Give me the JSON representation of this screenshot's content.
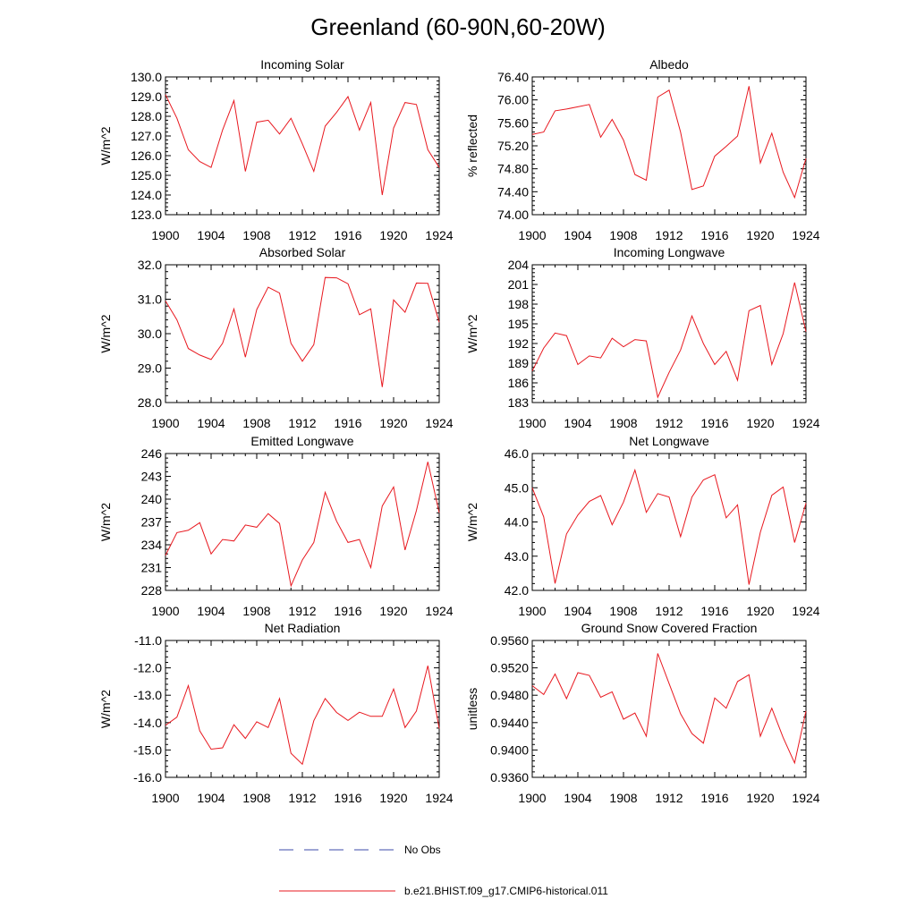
{
  "title": "Greenland (60-90N,60-20W)",
  "legend": [
    {
      "label": "No Obs",
      "color": "#3b4ba8",
      "dashed": true
    },
    {
      "label": "b.e21.BHIST.f09_g17.CMIP6-historical.011",
      "color": "#e8181f",
      "dashed": false
    }
  ],
  "chart_data": [
    {
      "type": "line",
      "title": "Incoming Solar",
      "ylabel": "W/m^2",
      "xlim": [
        1900,
        1924
      ],
      "ylim": [
        123.0,
        130.0
      ],
      "yticks": [
        123.0,
        124.0,
        125.0,
        126.0,
        127.0,
        128.0,
        129.0,
        130.0
      ],
      "ytick_labels": [
        "123.0",
        "124.0",
        "125.0",
        "126.0",
        "127.0",
        "128.0",
        "129.0",
        "130.0"
      ],
      "xticks": [
        1900,
        1904,
        1908,
        1912,
        1916,
        1920,
        1924
      ],
      "series": [
        {
          "color": "#e8181f",
          "x": [
            1900,
            1901,
            1902,
            1903,
            1904,
            1905,
            1906,
            1907,
            1908,
            1909,
            1910,
            1911,
            1912,
            1913,
            1914,
            1915,
            1916,
            1917,
            1918,
            1919,
            1920,
            1921,
            1922,
            1923,
            1924
          ],
          "values": [
            129.1,
            127.9,
            126.3,
            125.7,
            125.4,
            127.3,
            128.8,
            125.2,
            127.7,
            127.8,
            127.1,
            127.9,
            126.6,
            125.2,
            127.5,
            128.2,
            129.0,
            127.3,
            128.7,
            124.0,
            127.4,
            128.7,
            128.6,
            126.3,
            125.4
          ]
        }
      ]
    },
    {
      "type": "line",
      "title": "Albedo",
      "ylabel": "% reflected",
      "xlim": [
        1900,
        1924
      ],
      "ylim": [
        74.0,
        76.4
      ],
      "yticks": [
        74.0,
        74.4,
        74.8,
        75.2,
        75.6,
        76.0,
        76.4
      ],
      "ytick_labels": [
        "74.00",
        "74.40",
        "74.80",
        "75.20",
        "75.60",
        "76.00",
        "76.40"
      ],
      "xticks": [
        1900,
        1904,
        1908,
        1912,
        1916,
        1920,
        1924
      ],
      "series": [
        {
          "color": "#e8181f",
          "x": [
            1900,
            1901,
            1902,
            1903,
            1904,
            1905,
            1906,
            1907,
            1908,
            1909,
            1910,
            1911,
            1912,
            1913,
            1914,
            1915,
            1916,
            1917,
            1918,
            1919,
            1920,
            1921,
            1922,
            1923,
            1924
          ],
          "values": [
            75.4,
            75.44,
            75.81,
            75.84,
            75.88,
            75.92,
            75.35,
            75.66,
            75.3,
            74.7,
            74.6,
            76.05,
            76.17,
            75.44,
            74.44,
            74.5,
            75.02,
            75.19,
            75.37,
            76.24,
            74.9,
            75.42,
            74.74,
            74.3,
            74.98
          ]
        }
      ]
    },
    {
      "type": "line",
      "title": "Absorbed Solar",
      "ylabel": "W/m^2",
      "xlim": [
        1900,
        1924
      ],
      "ylim": [
        28.0,
        32.0
      ],
      "yticks": [
        28.0,
        29.0,
        30.0,
        31.0,
        32.0
      ],
      "ytick_labels": [
        "28.0",
        "29.0",
        "30.0",
        "31.0",
        "32.0"
      ],
      "xticks": [
        1900,
        1904,
        1908,
        1912,
        1916,
        1920,
        1924
      ],
      "series": [
        {
          "color": "#e8181f",
          "x": [
            1900,
            1901,
            1902,
            1903,
            1904,
            1905,
            1906,
            1907,
            1908,
            1909,
            1910,
            1911,
            1912,
            1913,
            1914,
            1915,
            1916,
            1917,
            1918,
            1919,
            1920,
            1921,
            1922,
            1923,
            1924
          ],
          "values": [
            30.95,
            30.4,
            29.57,
            29.38,
            29.25,
            29.72,
            30.72,
            29.32,
            30.7,
            31.35,
            31.18,
            29.72,
            29.2,
            29.68,
            31.63,
            31.62,
            31.45,
            30.55,
            30.72,
            28.45,
            30.98,
            30.62,
            31.47,
            31.46,
            30.33
          ]
        }
      ]
    },
    {
      "type": "line",
      "title": "Incoming Longwave",
      "ylabel": "W/m^2",
      "xlim": [
        1900,
        1924
      ],
      "ylim": [
        183,
        204
      ],
      "yticks": [
        183,
        186,
        189,
        192,
        195,
        198,
        201,
        204
      ],
      "ytick_labels": [
        "183",
        "186",
        "189",
        "192",
        "195",
        "198",
        "201",
        "204"
      ],
      "xticks": [
        1900,
        1904,
        1908,
        1912,
        1916,
        1920,
        1924
      ],
      "series": [
        {
          "color": "#e8181f",
          "x": [
            1900,
            1901,
            1902,
            1903,
            1904,
            1905,
            1906,
            1907,
            1908,
            1909,
            1910,
            1911,
            1912,
            1913,
            1914,
            1915,
            1916,
            1917,
            1918,
            1919,
            1920,
            1921,
            1922,
            1923,
            1924
          ],
          "values": [
            187.8,
            191.3,
            193.6,
            193.2,
            188.8,
            190.1,
            189.8,
            192.8,
            191.5,
            192.6,
            192.4,
            183.8,
            187.6,
            191.0,
            196.2,
            192.0,
            188.8,
            190.8,
            186.4,
            197.0,
            197.8,
            188.8,
            193.5,
            201.3,
            193.8
          ]
        }
      ]
    },
    {
      "type": "line",
      "title": "Emitted Longwave",
      "ylabel": "W/m^2",
      "xlim": [
        1900,
        1924
      ],
      "ylim": [
        228,
        246
      ],
      "yticks": [
        228,
        231,
        234,
        237,
        240,
        243,
        246
      ],
      "ytick_labels": [
        "228",
        "231",
        "234",
        "237",
        "240",
        "243",
        "246"
      ],
      "xticks": [
        1900,
        1904,
        1908,
        1912,
        1916,
        1920,
        1924
      ],
      "series": [
        {
          "color": "#e8181f",
          "x": [
            1900,
            1901,
            1902,
            1903,
            1904,
            1905,
            1906,
            1907,
            1908,
            1909,
            1910,
            1911,
            1912,
            1913,
            1914,
            1915,
            1916,
            1917,
            1918,
            1919,
            1920,
            1921,
            1922,
            1923,
            1924
          ],
          "values": [
            232.6,
            235.6,
            235.9,
            236.9,
            232.8,
            234.7,
            234.5,
            236.6,
            236.3,
            238.1,
            236.8,
            228.6,
            232.0,
            234.3,
            240.9,
            237.1,
            234.3,
            234.7,
            231.0,
            239.1,
            241.6,
            233.3,
            238.5,
            244.9,
            238.2
          ]
        }
      ]
    },
    {
      "type": "line",
      "title": "Net Longwave",
      "ylabel": "W/m^2",
      "xlim": [
        1900,
        1924
      ],
      "ylim": [
        42.0,
        46.0
      ],
      "yticks": [
        42.0,
        43.0,
        44.0,
        45.0,
        46.0
      ],
      "ytick_labels": [
        "42.0",
        "43.0",
        "44.0",
        "45.0",
        "46.0"
      ],
      "xticks": [
        1900,
        1904,
        1908,
        1912,
        1916,
        1920,
        1924
      ],
      "series": [
        {
          "color": "#e8181f",
          "x": [
            1900,
            1901,
            1902,
            1903,
            1904,
            1905,
            1906,
            1907,
            1908,
            1909,
            1910,
            1911,
            1912,
            1913,
            1914,
            1915,
            1916,
            1917,
            1918,
            1919,
            1920,
            1921,
            1922,
            1923,
            1924
          ],
          "values": [
            45.0,
            44.15,
            42.2,
            43.65,
            44.2,
            44.6,
            44.77,
            43.92,
            44.58,
            45.52,
            44.28,
            44.83,
            44.73,
            43.57,
            44.73,
            45.23,
            45.38,
            44.12,
            44.5,
            42.17,
            43.7,
            44.78,
            45.02,
            43.4,
            44.55
          ]
        }
      ]
    },
    {
      "type": "line",
      "title": "Net Radiation",
      "ylabel": "W/m^2",
      "xlim": [
        1900,
        1924
      ],
      "ylim": [
        -16.0,
        -11.0
      ],
      "yticks": [
        -16.0,
        -15.0,
        -14.0,
        -13.0,
        -12.0,
        -11.0
      ],
      "ytick_labels": [
        "-16.0",
        "-15.0",
        "-14.0",
        "-13.0",
        "-12.0",
        "-11.0"
      ],
      "xticks": [
        1900,
        1904,
        1908,
        1912,
        1916,
        1920,
        1924
      ],
      "series": [
        {
          "color": "#e8181f",
          "x": [
            1900,
            1901,
            1902,
            1903,
            1904,
            1905,
            1906,
            1907,
            1908,
            1909,
            1910,
            1911,
            1912,
            1913,
            1914,
            1915,
            1916,
            1917,
            1918,
            1919,
            1920,
            1921,
            1922,
            1923,
            1924
          ],
          "values": [
            -14.1,
            -13.8,
            -12.65,
            -14.3,
            -14.97,
            -14.92,
            -14.08,
            -14.58,
            -13.97,
            -14.18,
            -13.12,
            -15.12,
            -15.52,
            -13.93,
            -13.12,
            -13.63,
            -13.92,
            -13.62,
            -13.77,
            -13.77,
            -12.77,
            -14.18,
            -13.58,
            -11.92,
            -14.22
          ]
        }
      ]
    },
    {
      "type": "line",
      "title": "Ground Snow Covered Fraction",
      "ylabel": "unitless",
      "xlim": [
        1900,
        1924
      ],
      "ylim": [
        0.936,
        0.956
      ],
      "yticks": [
        0.936,
        0.94,
        0.944,
        0.948,
        0.952,
        0.956
      ],
      "ytick_labels": [
        "0.9360",
        "0.9400",
        "0.9440",
        "0.9480",
        "0.9520",
        "0.9560"
      ],
      "xticks": [
        1900,
        1904,
        1908,
        1912,
        1916,
        1920,
        1924
      ],
      "series": [
        {
          "color": "#e8181f",
          "x": [
            1900,
            1901,
            1902,
            1903,
            1904,
            1905,
            1906,
            1907,
            1908,
            1909,
            1910,
            1911,
            1912,
            1913,
            1914,
            1915,
            1916,
            1917,
            1918,
            1919,
            1920,
            1921,
            1922,
            1923,
            1924
          ],
          "values": [
            0.9494,
            0.9481,
            0.9511,
            0.9475,
            0.9513,
            0.9509,
            0.9477,
            0.9485,
            0.9445,
            0.9454,
            0.942,
            0.9541,
            0.9497,
            0.9453,
            0.9424,
            0.941,
            0.9476,
            0.9461,
            0.95,
            0.951,
            0.942,
            0.9461,
            0.9418,
            0.9381,
            0.9457
          ]
        }
      ]
    }
  ]
}
